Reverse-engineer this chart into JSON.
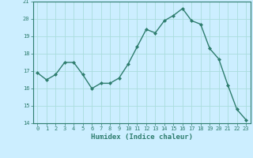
{
  "x": [
    0,
    1,
    2,
    3,
    4,
    5,
    6,
    7,
    8,
    9,
    10,
    11,
    12,
    13,
    14,
    15,
    16,
    17,
    18,
    19,
    20,
    21,
    22,
    23
  ],
  "y": [
    16.9,
    16.5,
    16.8,
    17.5,
    17.5,
    16.8,
    16.0,
    16.3,
    16.3,
    16.6,
    17.4,
    18.4,
    19.4,
    19.2,
    19.9,
    20.2,
    20.6,
    19.9,
    19.7,
    18.3,
    17.7,
    16.2,
    14.8,
    14.2
  ],
  "line_color": "#2e7d6e",
  "marker": "D",
  "marker_size": 2.0,
  "bg_color": "#cceeff",
  "grid_color": "#aadddd",
  "xlabel": "Humidex (Indice chaleur)",
  "xlim": [
    -0.5,
    23.5
  ],
  "ylim": [
    14,
    21
  ],
  "yticks": [
    14,
    15,
    16,
    17,
    18,
    19,
    20,
    21
  ],
  "xticks": [
    0,
    1,
    2,
    3,
    4,
    5,
    6,
    7,
    8,
    9,
    10,
    11,
    12,
    13,
    14,
    15,
    16,
    17,
    18,
    19,
    20,
    21,
    22,
    23
  ],
  "axis_color": "#2e7d6e",
  "tick_color": "#2e7d6e",
  "label_color": "#2e7d6e",
  "tick_fontsize": 5.0,
  "xlabel_fontsize": 6.5,
  "linewidth": 1.0
}
